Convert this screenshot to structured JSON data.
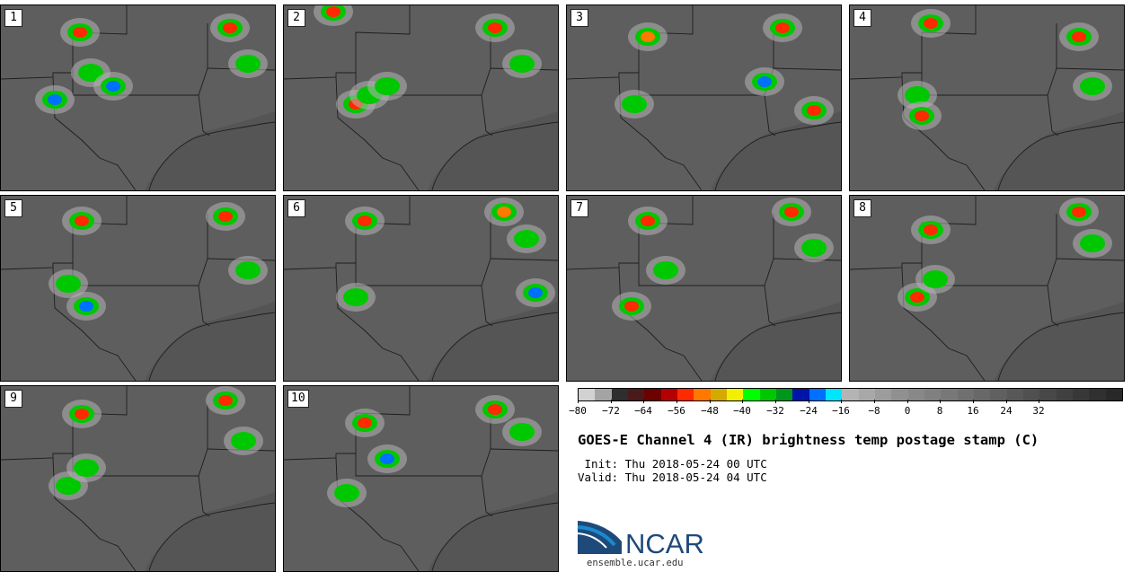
{
  "panels": [
    {
      "number": "1"
    },
    {
      "number": "2"
    },
    {
      "number": "3"
    },
    {
      "number": "4"
    },
    {
      "number": "5"
    },
    {
      "number": "6"
    },
    {
      "number": "7"
    },
    {
      "number": "8"
    },
    {
      "number": "9"
    },
    {
      "number": "10"
    }
  ],
  "colorbar": {
    "colors": [
      "#d2d2d2",
      "#a4a4a4",
      "#2e2e2e",
      "#4a1a1a",
      "#6e0000",
      "#b40000",
      "#ff2a00",
      "#ff7800",
      "#d4aa00",
      "#f0f000",
      "#00ff00",
      "#00c800",
      "#00961e",
      "#0014aa",
      "#0070ff",
      "#00e6ff",
      "#b4b4b4",
      "#a8a8a8",
      "#9c9c9c",
      "#909090",
      "#888888",
      "#808080",
      "#787878",
      "#707070",
      "#686868",
      "#606060",
      "#585858",
      "#505050",
      "#484848",
      "#404040",
      "#383838",
      "#303030",
      "#282828"
    ],
    "tick_labels": [
      "−80",
      "−72",
      "−64",
      "−56",
      "−48",
      "−40",
      "−32",
      "−24",
      "−16",
      "−8",
      "0",
      "8",
      "16",
      "24",
      "32"
    ]
  },
  "title": "GOES-E Channel 4 (IR) brightness temp postage stamp (C)",
  "init_line": " Init: Thu 2018-05-24 00 UTC",
  "valid_line": "Valid: Thu 2018-05-24 04 UTC",
  "logo": {
    "text": "NCAR",
    "url": "ensemble.ucar.edu",
    "color": "#1e4a7a",
    "accent": "#1a8ad0"
  }
}
